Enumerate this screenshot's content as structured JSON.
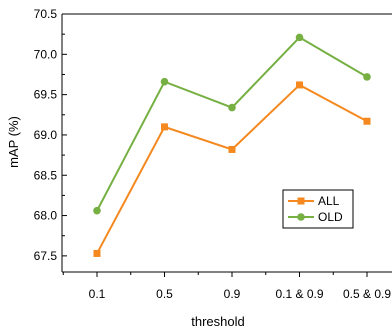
{
  "chart_data": {
    "type": "line",
    "title": "",
    "xlabel": "threshold",
    "ylabel": "mAP (%)",
    "categories": [
      "0.1",
      "0.5",
      "0.9",
      "0.1 & 0.9",
      "0.5 & 0.9"
    ],
    "ylim": [
      67.3,
      70.5
    ],
    "yticks": [
      "67.5",
      "68.0",
      "68.5",
      "69.0",
      "69.5",
      "70.0",
      "70.5"
    ],
    "grid": false,
    "legend_position": "lower-right",
    "series": [
      {
        "name": "ALL",
        "color": "#f5891f",
        "marker": "square",
        "values": [
          67.53,
          69.1,
          68.82,
          69.62,
          69.17
        ]
      },
      {
        "name": "OLD",
        "color": "#76b043",
        "marker": "circle",
        "values": [
          68.06,
          69.66,
          69.34,
          70.21,
          69.72
        ]
      }
    ]
  }
}
